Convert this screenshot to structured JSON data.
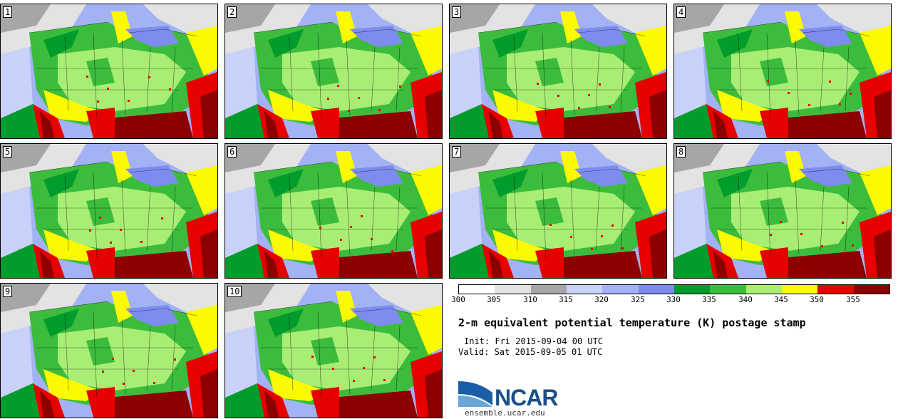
{
  "panels": [
    {
      "label": "1"
    },
    {
      "label": "2"
    },
    {
      "label": "3"
    },
    {
      "label": "4"
    },
    {
      "label": "5"
    },
    {
      "label": "6"
    },
    {
      "label": "7"
    },
    {
      "label": "8"
    },
    {
      "label": "9"
    },
    {
      "label": "10"
    }
  ],
  "colorbar": {
    "ticks": [
      "300",
      "305",
      "310",
      "315",
      "320",
      "325",
      "330",
      "335",
      "340",
      "345",
      "350",
      "355"
    ],
    "colors": [
      "#ffffff",
      "#e3e3e3",
      "#a6a6a6",
      "#c8d2f8",
      "#a2b2f4",
      "#7e8cf0",
      "#029c2c",
      "#3cbc3c",
      "#a8ee74",
      "#fcfa00",
      "#e60000",
      "#8c0000"
    ]
  },
  "title": "2-m equivalent potential temperature (K) postage stamp",
  "init": "Init: Fri 2015-09-04 00 UTC",
  "valid": "Valid: Sat 2015-09-05 01 UTC",
  "logo": {
    "text": "NCAR",
    "site": "ensemble.ucar.edu"
  }
}
